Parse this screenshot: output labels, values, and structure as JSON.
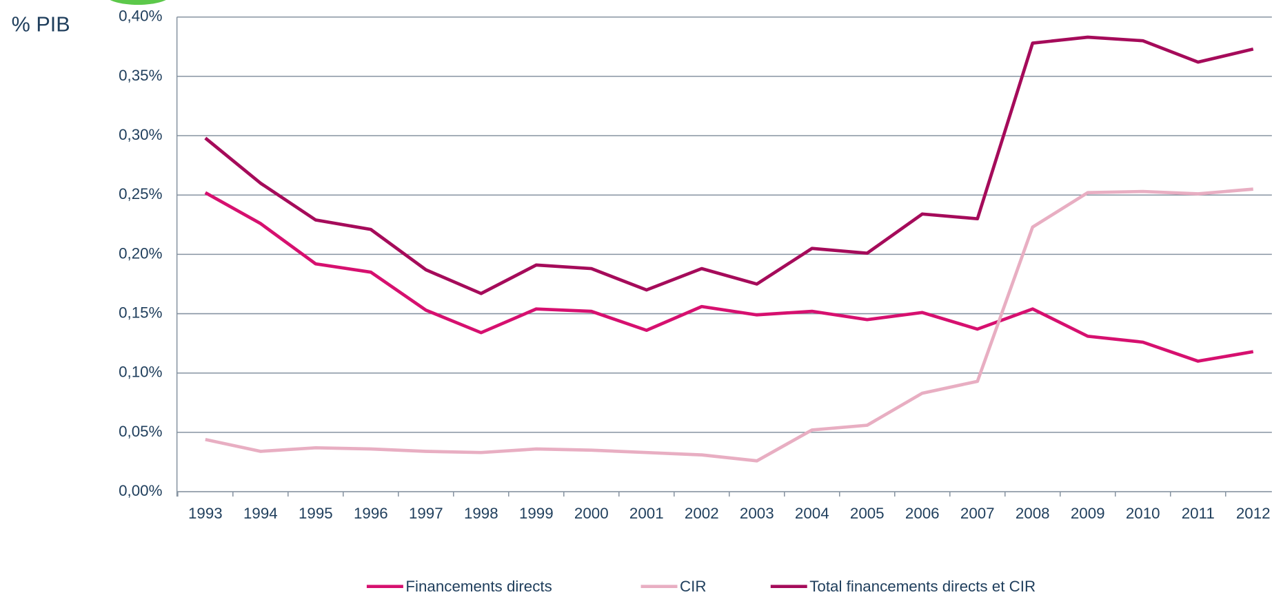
{
  "chart_data": {
    "type": "line",
    "y_label": "% PIB",
    "categories": [
      "1993",
      "1994",
      "1995",
      "1996",
      "1997",
      "1998",
      "1999",
      "2000",
      "2001",
      "2002",
      "2003",
      "2004",
      "2005",
      "2006",
      "2007",
      "2008",
      "2009",
      "2010",
      "2011",
      "2012"
    ],
    "series": [
      {
        "name": "Financements directs",
        "color": "#d6106f",
        "values": [
          0.252,
          0.226,
          0.192,
          0.185,
          0.153,
          0.134,
          0.154,
          0.152,
          0.136,
          0.156,
          0.149,
          0.152,
          0.145,
          0.151,
          0.137,
          0.154,
          0.131,
          0.126,
          0.11,
          0.118
        ]
      },
      {
        "name": "CIR",
        "color": "#e8aec2",
        "values": [
          0.044,
          0.034,
          0.037,
          0.036,
          0.034,
          0.033,
          0.036,
          0.035,
          0.033,
          0.031,
          0.026,
          0.052,
          0.056,
          0.083,
          0.093,
          0.223,
          0.252,
          0.253,
          0.251,
          0.255
        ]
      },
      {
        "name": "Total financements directs et CIR",
        "color": "#a50b5a",
        "values": [
          0.298,
          0.26,
          0.229,
          0.221,
          0.187,
          0.167,
          0.191,
          0.188,
          0.17,
          0.188,
          0.175,
          0.205,
          0.201,
          0.234,
          0.23,
          0.378,
          0.383,
          0.38,
          0.362,
          0.373
        ]
      }
    ],
    "ylim": [
      0,
      0.4
    ],
    "yticks": [
      {
        "value": 0,
        "label": "0,00%"
      },
      {
        "value": 0.05,
        "label": "0,05%"
      },
      {
        "value": 0.1,
        "label": "0,10%"
      },
      {
        "value": 0.15,
        "label": "0,15%"
      },
      {
        "value": 0.2,
        "label": "0,20%"
      },
      {
        "value": 0.25,
        "label": "0,25%"
      },
      {
        "value": 0.3,
        "label": "0,30%"
      },
      {
        "value": 0.35,
        "label": "0,35%"
      },
      {
        "value": 0.4,
        "label": "0,40%"
      }
    ],
    "grid": true,
    "legend": "bottom"
  }
}
